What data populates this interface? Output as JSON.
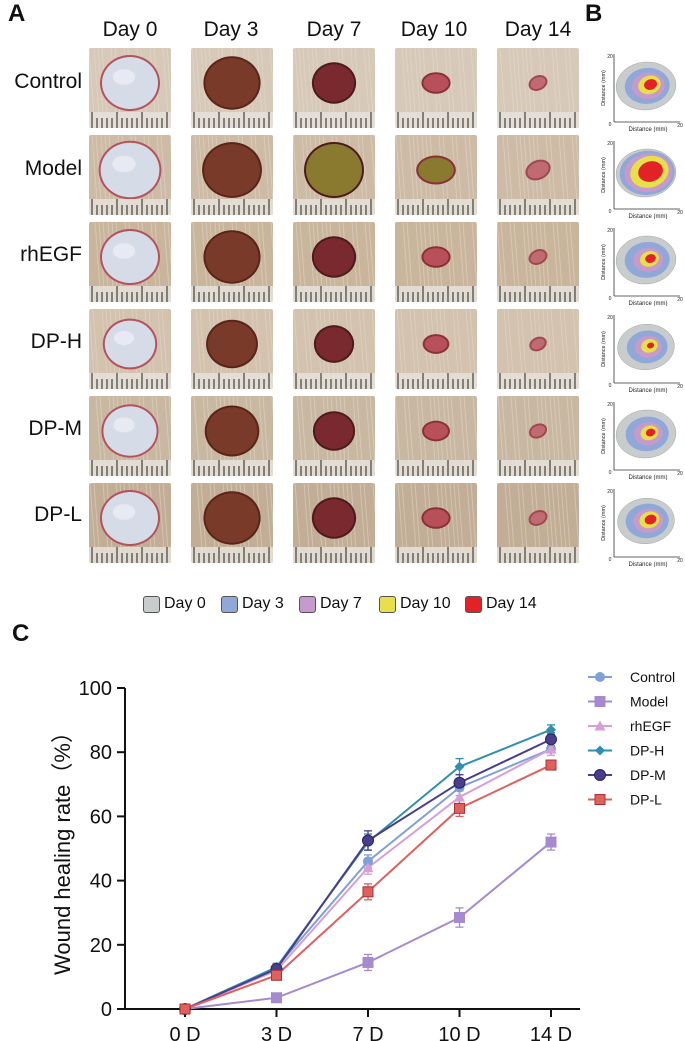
{
  "panels": {
    "a": "A",
    "b": "B",
    "c": "C"
  },
  "panel_a": {
    "days": [
      "Day 0",
      "Day 3",
      "Day 7",
      "Day 10",
      "Day 14"
    ],
    "groups": [
      "Control",
      "Model",
      "rhEGF",
      "DP-H",
      "DP-M",
      "DP-L"
    ]
  },
  "panel_b": {
    "x_label": "Distance (mm)",
    "y_label": "Distance (mm)",
    "tick_0": "0",
    "tick_20": "20"
  },
  "legend_days": [
    {
      "label": "Day 0",
      "color": "#c9cccc"
    },
    {
      "label": "Day 3",
      "color": "#8fa8d8"
    },
    {
      "label": "Day 7",
      "color": "#c79acc"
    },
    {
      "label": "Day 10",
      "color": "#e8e04a"
    },
    {
      "label": "Day 14",
      "color": "#e32227"
    }
  ],
  "chart_data": {
    "type": "line",
    "title": "",
    "xlabel": "",
    "ylabel": "Wound healing rate（%）",
    "categories": [
      "0 D",
      "3 D",
      "7 D",
      "10 D",
      "14 D"
    ],
    "ylim": [
      0,
      100
    ],
    "yticks": [
      "0",
      "20",
      "40",
      "60",
      "80",
      "100"
    ],
    "series": [
      {
        "name": "Control",
        "color": "#7f9fd6",
        "marker": "circle",
        "values": [
          0,
          13,
          46,
          69,
          81
        ],
        "errors": [
          0,
          1.2,
          2.0,
          2.5,
          2.0
        ]
      },
      {
        "name": "Model",
        "color": "#a58ad0",
        "marker": "square",
        "values": [
          0,
          3.5,
          14.5,
          28.5,
          52
        ],
        "errors": [
          0,
          1.0,
          2.5,
          3.0,
          2.5
        ]
      },
      {
        "name": "rhEGF",
        "color": "#d79fd4",
        "marker": "triangle",
        "values": [
          0,
          12,
          44,
          66,
          81
        ],
        "errors": [
          0,
          1.2,
          2.0,
          2.5,
          2.0
        ]
      },
      {
        "name": "DP-H",
        "color": "#2f8fae",
        "marker": "diamond",
        "values": [
          0,
          13,
          52,
          75.5,
          87
        ],
        "errors": [
          0,
          1.2,
          2.5,
          2.5,
          1.5
        ]
      },
      {
        "name": "DP-M",
        "color": "#4a3e8c",
        "marker": "circle",
        "values": [
          0,
          12.5,
          52.5,
          70.5,
          84
        ],
        "errors": [
          0,
          1.2,
          3.0,
          2.5,
          2.0
        ]
      },
      {
        "name": "DP-L",
        "color": "#e0605e",
        "marker": "square",
        "values": [
          0,
          10.5,
          36.5,
          62.5,
          76
        ],
        "errors": [
          0,
          1.2,
          2.5,
          2.5,
          1.5
        ]
      }
    ]
  }
}
